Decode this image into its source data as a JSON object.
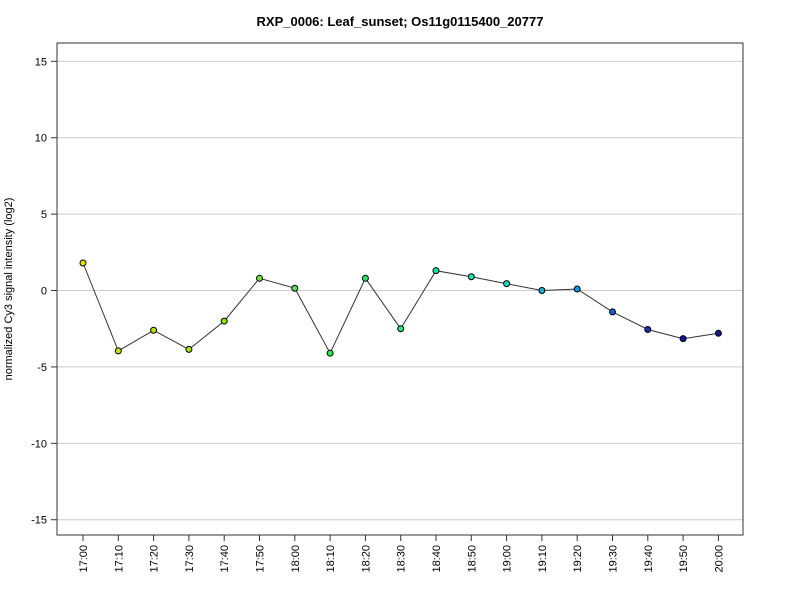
{
  "chart_data": {
    "type": "line",
    "title": "RXP_0006: Leaf_sunset; Os11g0115400_20777",
    "xlabel": "",
    "ylabel": "normalized Cy3 signal intensity (log2)",
    "ylim": [
      -16,
      16.2
    ],
    "yticks": [
      15,
      10,
      5,
      0,
      -5,
      -10,
      -15
    ],
    "grid": "horizontal",
    "categories": [
      "17:00",
      "17:10",
      "17:20",
      "17:30",
      "17:40",
      "17:50",
      "18:00",
      "18:10",
      "18:20",
      "18:30",
      "18:40",
      "18:50",
      "19:00",
      "19:10",
      "19:20",
      "19:30",
      "19:40",
      "19:50",
      "20:00"
    ],
    "series": [
      {
        "values": [
          1.8,
          -3.95,
          -2.6,
          -3.85,
          -2.0,
          0.8,
          0.15,
          -4.1,
          0.8,
          -2.5,
          1.3,
          0.9,
          0.45,
          0.0,
          0.1,
          -1.4,
          -2.55,
          -3.15,
          -2.8
        ],
        "colors": [
          "#e6e600",
          "#c8e600",
          "#b4e600",
          "#a0e600",
          "#8ce600",
          "#6ee632",
          "#50e650",
          "#32e650",
          "#28e664",
          "#28e678",
          "#14e6a0",
          "#14e6b4",
          "#14dcc8",
          "#14b4dc",
          "#1496dc",
          "#1464c8",
          "#1432b4",
          "#1414a0",
          "#141496"
        ]
      }
    ]
  }
}
